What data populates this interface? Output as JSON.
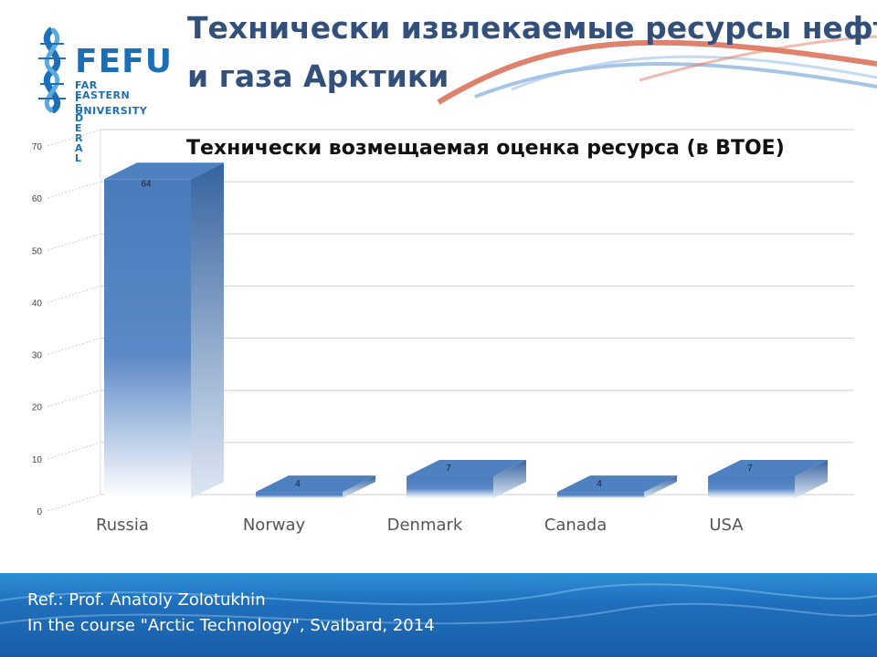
{
  "slide": {
    "title_line1": "Технически извлекаемые ресурсы нефти",
    "title_line2": "и газа Арктики",
    "logo": {
      "name": "FEFU",
      "line1": "FAR EASTERN",
      "line2": "F E D E R A L",
      "line3": "UNIVERSITY"
    },
    "footer_line1": "Ref.: Prof. Anatoly Zolotukhin",
    "footer_line2": "In the course \"Arctic Technology\", Svalbard, 2014"
  },
  "chart_data": {
    "type": "bar",
    "title": "Технически возмещаемая оценка ресурса (в BTOE)",
    "categories": [
      "Russia",
      "Norway",
      "Denmark",
      "Canada",
      "USA"
    ],
    "values": [
      64,
      4,
      7,
      4,
      7
    ],
    "data_labels": [
      "64",
      "4",
      "7",
      "4",
      "7"
    ],
    "ylim": [
      0,
      70
    ],
    "yticks": [
      0,
      10,
      20,
      30,
      40,
      50,
      60,
      70
    ],
    "ytick_labels": [
      "0",
      "10",
      "20",
      "30",
      "40",
      "50",
      "60",
      "70"
    ],
    "xlabel": "",
    "ylabel": "",
    "grid": true,
    "three_d": true,
    "bar_color": "#4a7bbd"
  }
}
